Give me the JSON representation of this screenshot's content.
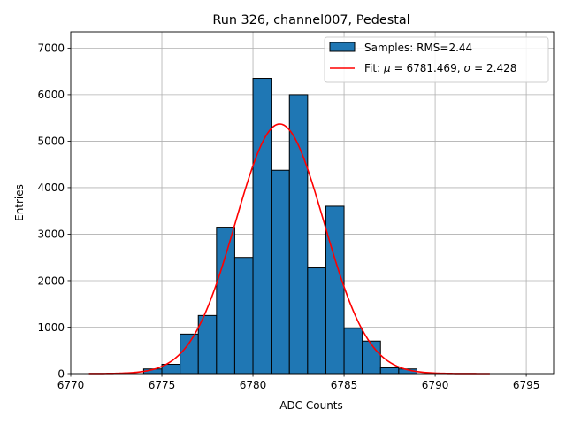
{
  "chart_data": {
    "type": "bar",
    "title": "Run 326, channel007, Pedestal",
    "xlabel": "ADC Counts",
    "ylabel": "Entries",
    "xlim": [
      6770,
      6796.5
    ],
    "ylim": [
      0,
      7350
    ],
    "xticks": [
      6770,
      6775,
      6780,
      6785,
      6790,
      6795
    ],
    "yticks": [
      0,
      1000,
      2000,
      3000,
      4000,
      5000,
      6000,
      7000
    ],
    "grid": true,
    "legend_position": "top-right",
    "histogram": {
      "name": "Samples: RMS=2.44",
      "color": "#1f77b4",
      "edge_color": "#000000",
      "bin_width": 1,
      "bin_edges": [
        6774,
        6775,
        6776,
        6777,
        6778,
        6779,
        6780,
        6781,
        6782,
        6783,
        6784,
        6785,
        6786,
        6787,
        6788,
        6789
      ],
      "counts": [
        100,
        200,
        850,
        1250,
        3150,
        2500,
        6350,
        4375,
        6000,
        2275,
        3600,
        975,
        700,
        125,
        100
      ]
    },
    "fit": {
      "name_text": "Fit: ",
      "mu_symbol": "μ",
      "mu_value": "= 6781.469,",
      "sigma_symbol": "σ",
      "sigma_value": "= 2.428",
      "color": "#ff0000",
      "mu": 6781.469,
      "sigma": 2.428,
      "peak": 5370,
      "x_range": [
        6771,
        6793
      ]
    }
  }
}
